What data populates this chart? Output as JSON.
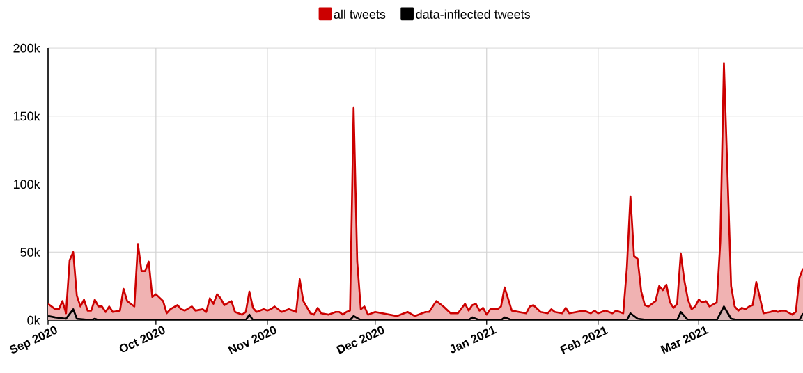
{
  "chart_data": {
    "type": "area",
    "x": [
      "2020-09-01",
      "2020-09-03",
      "2020-09-04",
      "2020-09-05",
      "2020-09-06",
      "2020-09-07",
      "2020-09-08",
      "2020-09-09",
      "2020-09-10",
      "2020-09-11",
      "2020-09-12",
      "2020-09-13",
      "2020-09-14",
      "2020-09-15",
      "2020-09-16",
      "2020-09-17",
      "2020-09-18",
      "2020-09-19",
      "2020-09-21",
      "2020-09-22",
      "2020-09-23",
      "2020-09-25",
      "2020-09-26",
      "2020-09-27",
      "2020-09-28",
      "2020-09-29",
      "2020-09-30",
      "2020-10-01",
      "2020-10-03",
      "2020-10-04",
      "2020-10-05",
      "2020-10-07",
      "2020-10-08",
      "2020-10-09",
      "2020-10-11",
      "2020-10-12",
      "2020-10-14",
      "2020-10-15",
      "2020-10-16",
      "2020-10-17",
      "2020-10-18",
      "2020-10-19",
      "2020-10-20",
      "2020-10-22",
      "2020-10-23",
      "2020-10-25",
      "2020-10-26",
      "2020-10-27",
      "2020-10-28",
      "2020-10-29",
      "2020-10-31",
      "2020-11-01",
      "2020-11-02",
      "2020-11-03",
      "2020-11-05",
      "2020-11-07",
      "2020-11-09",
      "2020-11-10",
      "2020-11-11",
      "2020-11-13",
      "2020-11-14",
      "2020-11-15",
      "2020-11-16",
      "2020-11-18",
      "2020-11-20",
      "2020-11-21",
      "2020-11-22",
      "2020-11-23",
      "2020-11-24",
      "2020-11-25",
      "2020-11-26",
      "2020-11-27",
      "2020-11-28",
      "2020-11-29",
      "2020-11-30",
      "2020-12-01",
      "2020-12-03",
      "2020-12-05",
      "2020-12-07",
      "2020-12-08",
      "2020-12-10",
      "2020-12-12",
      "2020-12-13",
      "2020-12-15",
      "2020-12-16",
      "2020-12-18",
      "2020-12-20",
      "2020-12-22",
      "2020-12-24",
      "2020-12-26",
      "2020-12-27",
      "2020-12-28",
      "2020-12-29",
      "2020-12-30",
      "2020-12-31",
      "2021-01-01",
      "2021-01-02",
      "2021-01-04",
      "2021-01-05",
      "2021-01-06",
      "2021-01-08",
      "2021-01-10",
      "2021-01-12",
      "2021-01-13",
      "2021-01-14",
      "2021-01-16",
      "2021-01-18",
      "2021-01-19",
      "2021-01-20",
      "2021-01-22",
      "2021-01-23",
      "2021-01-24",
      "2021-01-26",
      "2021-01-28",
      "2021-01-30",
      "2021-01-31",
      "2021-02-01",
      "2021-02-03",
      "2021-02-05",
      "2021-02-06",
      "2021-02-08",
      "2021-02-09",
      "2021-02-10",
      "2021-02-11",
      "2021-02-12",
      "2021-02-13",
      "2021-02-14",
      "2021-02-15",
      "2021-02-17",
      "2021-02-18",
      "2021-02-19",
      "2021-02-20",
      "2021-02-21",
      "2021-02-22",
      "2021-02-23",
      "2021-02-24",
      "2021-02-25",
      "2021-02-26",
      "2021-02-27",
      "2021-02-28",
      "2021-03-01",
      "2021-03-02",
      "2021-03-03",
      "2021-03-04",
      "2021-03-06",
      "2021-03-07",
      "2021-03-08",
      "2021-03-10",
      "2021-03-11",
      "2021-03-12",
      "2021-03-13",
      "2021-03-14",
      "2021-03-15",
      "2021-03-16",
      "2021-03-17",
      "2021-03-19",
      "2021-03-21",
      "2021-03-22",
      "2021-03-23",
      "2021-03-24",
      "2021-03-25",
      "2021-03-27",
      "2021-03-28",
      "2021-03-29",
      "2021-03-30"
    ],
    "series": [
      {
        "name": "all tweets",
        "color": "#cc0000",
        "values": [
          12000,
          8000,
          8000,
          14000,
          5000,
          44000,
          50000,
          18000,
          10000,
          15000,
          7000,
          7000,
          15000,
          10000,
          10000,
          6000,
          10000,
          6000,
          7000,
          23000,
          14000,
          10000,
          56000,
          36000,
          36000,
          43000,
          17000,
          19000,
          14000,
          5000,
          8000,
          11000,
          8000,
          7000,
          10000,
          7000,
          8000,
          6000,
          16000,
          12000,
          19000,
          16000,
          11000,
          14000,
          6000,
          4000,
          6000,
          21000,
          9000,
          6000,
          8000,
          7000,
          8000,
          10000,
          6000,
          8000,
          6000,
          30000,
          14000,
          5000,
          4000,
          9000,
          5000,
          4000,
          6000,
          6000,
          4000,
          6000,
          7000,
          156000,
          43000,
          8000,
          10000,
          4000,
          5000,
          6000,
          5000,
          4000,
          3000,
          4000,
          6000,
          3000,
          4000,
          6000,
          6000,
          14000,
          10000,
          5000,
          5000,
          12000,
          7000,
          11000,
          12000,
          7000,
          9000,
          4000,
          8000,
          8000,
          10000,
          24000,
          7000,
          6000,
          5000,
          10000,
          11000,
          6000,
          5000,
          8000,
          6000,
          5000,
          9000,
          5000,
          6000,
          7000,
          5000,
          7000,
          5000,
          7000,
          5000,
          7000,
          5000,
          38000,
          91000,
          47000,
          45000,
          21000,
          11000,
          10000,
          14000,
          25000,
          22000,
          26000,
          13000,
          9000,
          12000,
          49000,
          29000,
          15000,
          8000,
          10000,
          15000,
          13000,
          14000,
          10000,
          13000,
          58000,
          189000,
          25000,
          10000,
          7000,
          9000,
          8000,
          10000,
          11000,
          28000,
          5000,
          6000,
          7000,
          6000,
          7000,
          7000,
          4000,
          6000,
          31000,
          38000
        ]
      },
      {
        "name": "data-inflected tweets",
        "color": "#000000",
        "x": [
          "2020-09-01",
          "2020-09-03",
          "2020-09-06",
          "2020-09-08",
          "2020-09-09",
          "2020-09-13",
          "2020-09-14",
          "2020-09-15",
          "2020-10-26",
          "2020-10-27",
          "2020-10-28",
          "2020-11-24",
          "2020-11-25",
          "2020-11-27",
          "2020-12-27",
          "2020-12-28",
          "2020-12-30",
          "2021-01-05",
          "2021-01-06",
          "2021-01-08",
          "2021-02-09",
          "2021-02-10",
          "2021-02-12",
          "2021-02-15",
          "2021-02-23",
          "2021-02-24",
          "2021-02-26",
          "2021-03-06",
          "2021-03-08",
          "2021-03-10",
          "2021-03-12",
          "2021-03-29",
          "2021-03-30"
        ],
        "values": [
          3000,
          2000,
          1000,
          8000,
          1000,
          0,
          1000,
          0,
          0,
          4000,
          0,
          0,
          3000,
          0,
          0,
          2000,
          0,
          0,
          2000,
          0,
          0,
          5000,
          1000,
          0,
          0,
          6000,
          0,
          0,
          10000,
          1000,
          0,
          0,
          5000
        ]
      }
    ],
    "xlim": [
      "2020-09-01",
      "2021-03-30"
    ],
    "xticks": [
      {
        "value": "2020-09-01",
        "label": "Sep 2020"
      },
      {
        "value": "2020-10-01",
        "label": "Oct 2020"
      },
      {
        "value": "2020-11-01",
        "label": "Nov 2020"
      },
      {
        "value": "2020-12-01",
        "label": "Dec 2020"
      },
      {
        "value": "2021-01-01",
        "label": "Jan 2021"
      },
      {
        "value": "2021-02-01",
        "label": "Feb 2021"
      },
      {
        "value": "2021-03-01",
        "label": "Mar 2021"
      }
    ],
    "ylim": [
      0,
      200000
    ],
    "yticks": [
      {
        "value": 0,
        "label": "0k"
      },
      {
        "value": 50000,
        "label": "50k"
      },
      {
        "value": 100000,
        "label": "100k"
      },
      {
        "value": 150000,
        "label": "150k"
      },
      {
        "value": 200000,
        "label": "200k"
      }
    ],
    "grid": true,
    "legend": "top"
  }
}
